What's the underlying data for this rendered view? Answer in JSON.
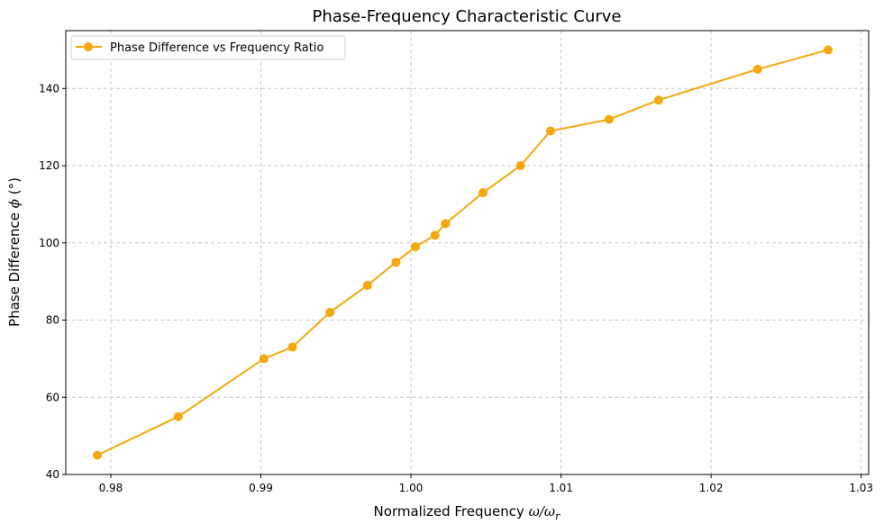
{
  "chart_data": {
    "type": "line",
    "title": "Phase-Frequency Characteristic Curve",
    "xlabel_main": "Normalized Frequency ",
    "xlabel_math": "ω/ω",
    "xlabel_sub": "r",
    "ylabel_main": "Phase Difference ",
    "ylabel_math": "ϕ",
    "ylabel_unit": " (°)",
    "xlim": [
      0.977,
      1.0305
    ],
    "ylim": [
      40,
      155
    ],
    "xticks": [
      0.98,
      0.99,
      1.0,
      1.01,
      1.02,
      1.03
    ],
    "xtick_labels": [
      "0.98",
      "0.99",
      "1.00",
      "1.01",
      "1.02",
      "1.03"
    ],
    "yticks": [
      40,
      60,
      80,
      100,
      120,
      140
    ],
    "ytick_labels": [
      "40",
      "60",
      "80",
      "100",
      "120",
      "140"
    ],
    "grid": true,
    "legend_position": "top-left",
    "color": "#f5a80c",
    "series": [
      {
        "name": "Phase Difference vs Frequency Ratio",
        "x": [
          0.9791,
          0.9845,
          0.9902,
          0.9921,
          0.9946,
          0.9971,
          0.999,
          1.0003,
          1.0016,
          1.0023,
          1.0048,
          1.0073,
          1.0093,
          1.0132,
          1.0165,
          1.0231,
          1.0278
        ],
        "y": [
          45,
          55,
          70,
          73,
          82,
          89,
          95,
          99,
          102,
          105,
          113,
          120,
          129,
          132,
          137,
          145,
          150
        ]
      }
    ]
  }
}
